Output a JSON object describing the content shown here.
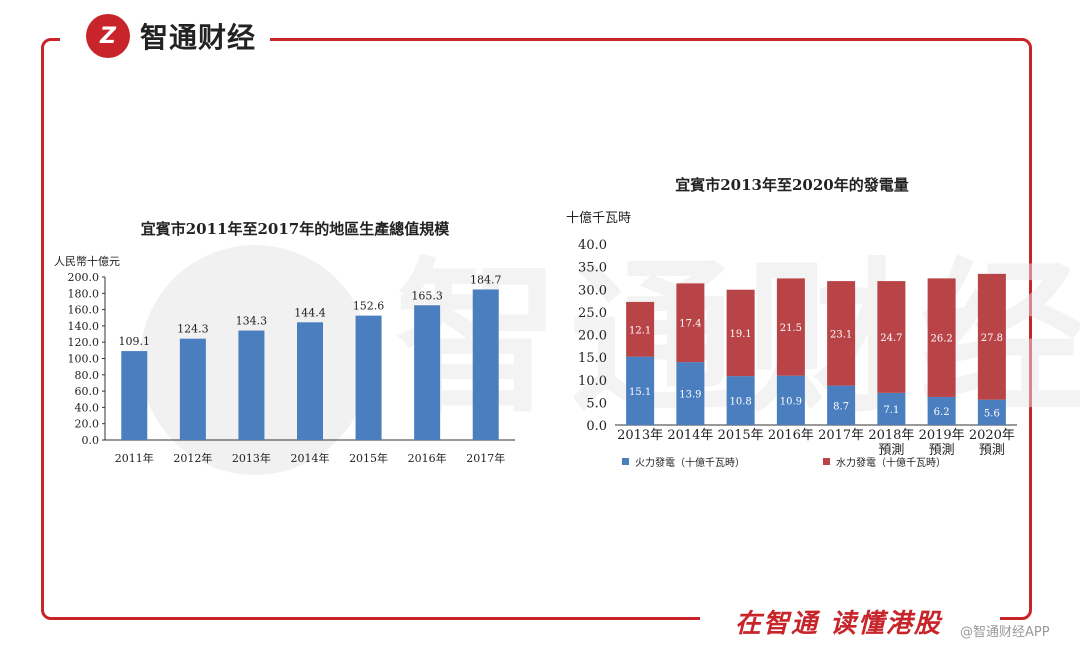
{
  "brand": {
    "logo_mark": "Z",
    "name": "智通财经"
  },
  "slogan": "在智通  读懂港股",
  "corner_watermark": "@智通财经APP",
  "background_watermark": "智通财经",
  "colors": {
    "brand_red": "#c8252b",
    "bar_blue": "#4a7ebf",
    "bar_red": "#b84447"
  },
  "chart_data": [
    {
      "type": "bar",
      "title": "宜賓市2011年至2017年的地區生產總值規模",
      "ylabel": "人民幣十億元",
      "categories": [
        "2011年",
        "2012年",
        "2013年",
        "2014年",
        "2015年",
        "2016年",
        "2017年"
      ],
      "values": [
        109.1,
        124.3,
        134.3,
        144.4,
        152.6,
        165.3,
        184.7
      ],
      "data_labels": [
        "109.1",
        "124.3",
        "134.3",
        "144.4",
        "152.6",
        "165.3",
        "184.7"
      ],
      "ylim": [
        0,
        200
      ],
      "yticks": [
        "0.0",
        "20.0",
        "40.0",
        "60.0",
        "80.0",
        "100.0",
        "120.0",
        "140.0",
        "160.0",
        "180.0",
        "200.0"
      ],
      "grid": false
    },
    {
      "type": "bar",
      "stacked": true,
      "title": "宜賓市2013年至2020年的發電量",
      "ylabel": "十億千瓦時",
      "categories": [
        [
          "2013年"
        ],
        [
          "2014年"
        ],
        [
          "2015年"
        ],
        [
          "2016年"
        ],
        [
          "2017年"
        ],
        [
          "2018年",
          "預測"
        ],
        [
          "2019年",
          "預測"
        ],
        [
          "2020年",
          "預測"
        ]
      ],
      "series": [
        {
          "name": "火力發電（十億千瓦時）",
          "values": [
            15.1,
            13.9,
            10.8,
            10.9,
            8.7,
            7.1,
            6.2,
            5.6
          ],
          "data_labels": [
            "15.1",
            "13.9",
            "10.8",
            "10.9",
            "8.7",
            "7.1",
            "6.2",
            "5.6"
          ]
        },
        {
          "name": "水力發電（十億千瓦時）",
          "values": [
            12.1,
            17.4,
            19.1,
            21.5,
            23.1,
            24.7,
            26.2,
            27.8
          ],
          "data_labels": [
            "12.1",
            "17.4",
            "19.1",
            "21.5",
            "23.1",
            "24.7",
            "26.2",
            "27.8"
          ]
        }
      ],
      "ylim": [
        0,
        40
      ],
      "yticks": [
        "0.0",
        "5.0",
        "10.0",
        "15.0",
        "20.0",
        "25.0",
        "30.0",
        "35.0",
        "40.0"
      ],
      "grid": false,
      "legend": "bottom"
    }
  ]
}
